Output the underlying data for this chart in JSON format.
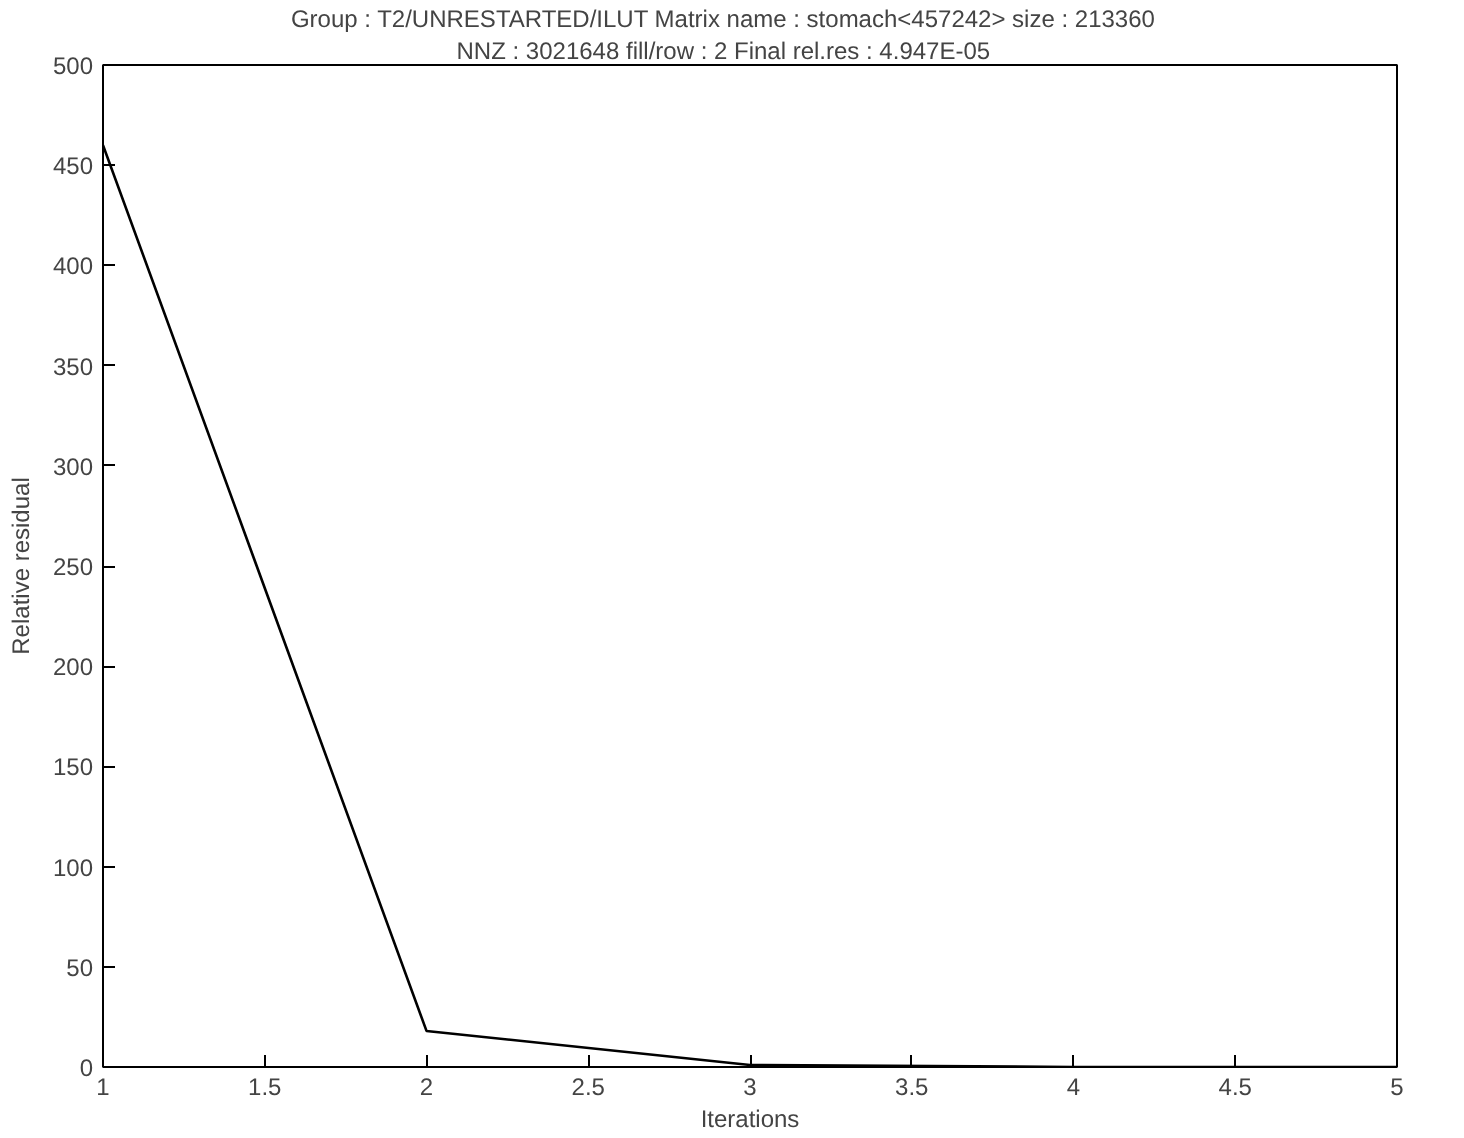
{
  "chart_data": {
    "type": "line",
    "title": "Group : T2/UNRESTARTED/ILUT     Matrix name : stomach<457242>     size : 213360",
    "subtitle": "NNZ : 3021648     fill/row : 2     Final rel.res : 4.947E-05",
    "xlabel": "Iterations",
    "ylabel": "Relative residual",
    "x": [
      1,
      2,
      3,
      4,
      5
    ],
    "series": [
      {
        "color": "#000000",
        "values": [
          460,
          18,
          1,
          0,
          0
        ]
      }
    ],
    "xlim": [
      1,
      5
    ],
    "xticks": [
      1,
      1.5,
      2,
      2.5,
      3,
      3.5,
      4,
      4.5,
      5
    ],
    "ylim": [
      0,
      500
    ],
    "yticks": [
      0,
      50,
      100,
      150,
      200,
      250,
      300,
      350,
      400,
      450,
      500
    ],
    "grid": false,
    "marker": "none",
    "line_style": "solid"
  }
}
